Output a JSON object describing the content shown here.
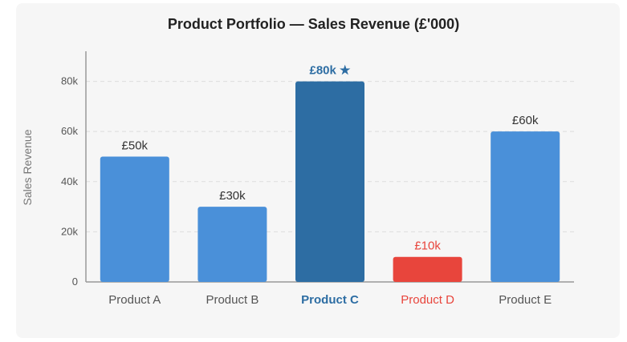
{
  "chart_data": {
    "type": "bar",
    "title": "Product Portfolio — Sales Revenue (£'000)",
    "xlabel": "",
    "ylabel": "Sales Revenue",
    "ylim": [
      0,
      92
    ],
    "yticks": [
      0,
      20,
      40,
      60,
      80
    ],
    "ytick_labels": [
      "0",
      "20k",
      "40k",
      "60k",
      "80k"
    ],
    "categories": [
      "Product A",
      "Product B",
      "Product C",
      "Product D",
      "Product E"
    ],
    "values": [
      50,
      30,
      80,
      10,
      60
    ],
    "data_labels": [
      "£50k",
      "£30k",
      "£80k ★",
      "£10k",
      "£60k"
    ],
    "highlight": {
      "Product C": "top",
      "Product D": "bottom"
    },
    "grid": true,
    "colors": {
      "default": "#4a90d9",
      "top": "#2d6da3",
      "bottom": "#e8453c",
      "label": "#333333",
      "tick": "#555555",
      "axis": "#999999",
      "grid": "#dddddd",
      "ylabel": "#777777"
    }
  }
}
